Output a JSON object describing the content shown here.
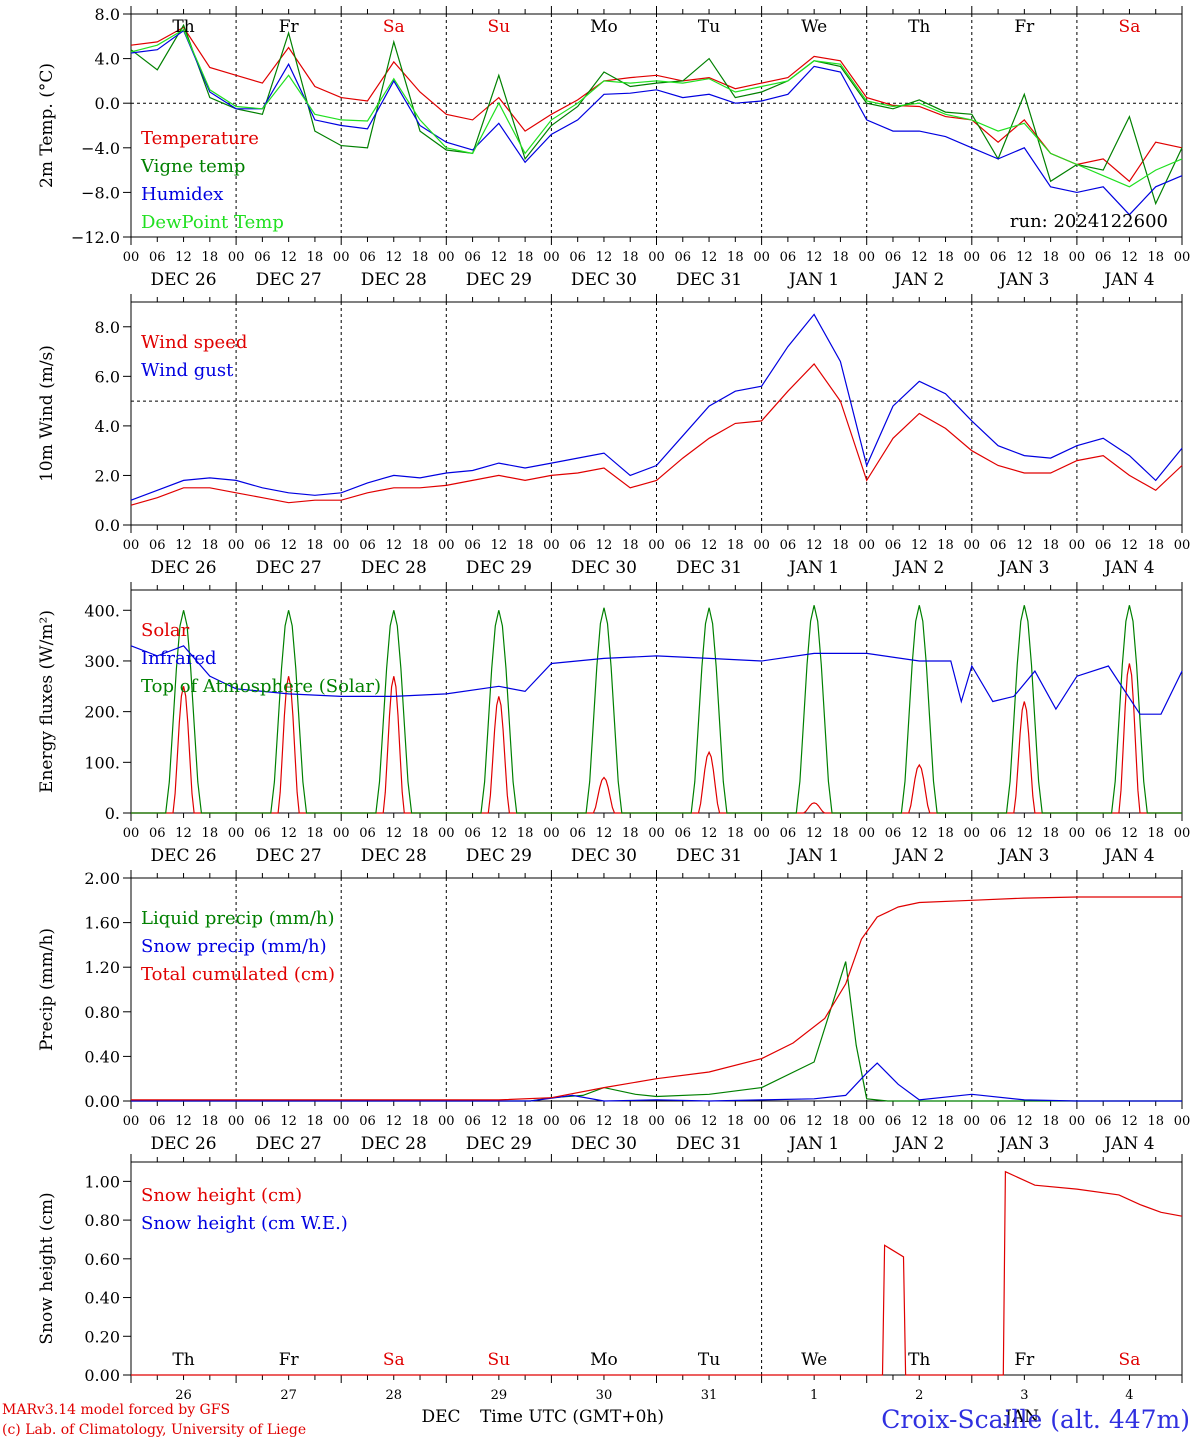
{
  "colors": {
    "red": "#e00000",
    "green": "#008000",
    "blue": "#0000e0",
    "lightgreen": "#20e020",
    "weekend": "#e00000",
    "station": "#3030e0"
  },
  "time_axis": {
    "hour_labels": [
      "00",
      "06",
      "12",
      "18"
    ],
    "final_label": "00",
    "date_labels": [
      "DEC 26",
      "DEC 27",
      "DEC 28",
      "DEC 29",
      "DEC 30",
      "DEC 31",
      "JAN  1",
      "JAN  2",
      "JAN  3",
      "JAN  4"
    ],
    "weekdays": [
      {
        "label": "Th",
        "weekend": false
      },
      {
        "label": "Fr",
        "weekend": false
      },
      {
        "label": "Sa",
        "weekend": true
      },
      {
        "label": "Su",
        "weekend": true
      },
      {
        "label": "Mo",
        "weekend": false
      },
      {
        "label": "Tu",
        "weekend": false
      },
      {
        "label": "We",
        "weekend": false
      },
      {
        "label": "Th",
        "weekend": false
      },
      {
        "label": "Fr",
        "weekend": false
      },
      {
        "label": "Sa",
        "weekend": true
      }
    ],
    "day_numbers": [
      "26",
      "27",
      "28",
      "29",
      "30",
      "31",
      "1",
      "2",
      "3",
      "4"
    ],
    "month_labels": {
      "dec": "DEC",
      "jan": "JAN"
    },
    "xlabel": "Time UTC (GMT+0h)"
  },
  "chart_data": [
    {
      "type": "line",
      "ylabel": "2m Temp. (°C)",
      "ylim": [
        -12,
        8
      ],
      "yticks": [
        "8.0",
        "4.0",
        "0.0",
        "−4.0",
        "−8.0",
        "−12.0"
      ],
      "ytick_values": [
        8,
        4,
        0,
        -4,
        -8,
        -12
      ],
      "ref_line": 0,
      "run_label": "run: 2024122600",
      "x_days": [
        0,
        0.25,
        0.5,
        0.75,
        1,
        1.25,
        1.5,
        1.75,
        2,
        2.25,
        2.5,
        2.75,
        3,
        3.25,
        3.5,
        3.75,
        4,
        4.25,
        4.5,
        4.75,
        5,
        5.25,
        5.5,
        5.75,
        6,
        6.25,
        6.5,
        6.75,
        7,
        7.25,
        7.5,
        7.75,
        8,
        8.25,
        8.5,
        8.75,
        9,
        9.25,
        9.5,
        9.75,
        10
      ],
      "series": [
        {
          "name": "Temperature",
          "color": "red",
          "values": [
            5.2,
            5.5,
            6.8,
            3.2,
            2.5,
            1.8,
            5.0,
            1.5,
            0.5,
            0.2,
            3.7,
            1.0,
            -1.0,
            -1.5,
            0.5,
            -2.5,
            -1.0,
            0.3,
            2.0,
            2.3,
            2.5,
            2.0,
            2.3,
            1.3,
            1.8,
            2.3,
            4.2,
            3.8,
            0.5,
            -0.2,
            -0.3,
            -1.2,
            -1.5,
            -3.5,
            -1.5,
            -4.5,
            -5.5,
            -5.0,
            -7.0,
            -3.5,
            -4.0
          ]
        },
        {
          "name": "Vigne temp",
          "color": "green",
          "values": [
            4.8,
            3.0,
            7.0,
            0.5,
            -0.5,
            -1.0,
            6.3,
            -2.5,
            -3.8,
            -4.0,
            5.5,
            -2.5,
            -4.2,
            -4.5,
            2.5,
            -5.0,
            -2.0,
            -0.3,
            2.8,
            1.5,
            1.8,
            2.0,
            4.0,
            0.5,
            1.0,
            2.0,
            3.8,
            3.3,
            0.0,
            -0.5,
            0.3,
            -0.8,
            -1.0,
            -5.0,
            0.8,
            -7.0,
            -5.5,
            -6.0,
            -1.2,
            -9.0,
            -4.0
          ]
        },
        {
          "name": "Humidex",
          "color": "blue",
          "values": [
            4.5,
            4.8,
            6.5,
            1.0,
            -0.5,
            -0.5,
            3.5,
            -1.5,
            -2.0,
            -2.3,
            2.0,
            -2.0,
            -3.5,
            -4.2,
            -1.8,
            -5.3,
            -2.8,
            -1.5,
            0.8,
            0.9,
            1.2,
            0.5,
            0.8,
            0.0,
            0.2,
            0.8,
            3.3,
            2.8,
            -1.5,
            -2.5,
            -2.5,
            -3.0,
            -4.0,
            -5.0,
            -4.0,
            -7.5,
            -8.0,
            -7.5,
            -10.0,
            -7.5,
            -6.5
          ]
        },
        {
          "name": "DewPoint Temp",
          "color": "lightgreen",
          "values": [
            4.6,
            5.2,
            6.6,
            1.2,
            -0.3,
            -0.5,
            2.5,
            -1.0,
            -1.5,
            -1.6,
            2.2,
            -1.5,
            -4.0,
            -4.5,
            0.0,
            -4.5,
            -1.5,
            0.0,
            2.0,
            1.8,
            2.0,
            1.8,
            2.2,
            1.0,
            1.5,
            2.0,
            3.8,
            3.5,
            0.2,
            -0.3,
            0.0,
            -1.0,
            -1.5,
            -2.5,
            -1.8,
            -4.5,
            -5.5,
            -6.5,
            -7.5,
            -6.0,
            -5.0
          ]
        }
      ]
    },
    {
      "type": "line",
      "ylabel": "10m Wind (m/s)",
      "ylim": [
        0,
        9
      ],
      "yticks": [
        "8.0",
        "6.0",
        "4.0",
        "2.0",
        "0.0"
      ],
      "ytick_values": [
        8,
        6,
        4,
        2,
        0
      ],
      "ref_line": 5,
      "x_days": [
        0,
        0.25,
        0.5,
        0.75,
        1,
        1.25,
        1.5,
        1.75,
        2,
        2.25,
        2.5,
        2.75,
        3,
        3.25,
        3.5,
        3.75,
        4,
        4.25,
        4.5,
        4.75,
        5,
        5.25,
        5.5,
        5.75,
        6,
        6.25,
        6.5,
        6.75,
        7,
        7.25,
        7.5,
        7.75,
        8,
        8.25,
        8.5,
        8.75,
        9,
        9.25,
        9.5,
        9.75,
        10
      ],
      "series": [
        {
          "name": "Wind speed",
          "color": "red",
          "values": [
            0.8,
            1.1,
            1.5,
            1.5,
            1.3,
            1.1,
            0.9,
            1.0,
            1.0,
            1.3,
            1.5,
            1.5,
            1.6,
            1.8,
            2.0,
            1.8,
            2.0,
            2.1,
            2.3,
            1.5,
            1.8,
            2.7,
            3.5,
            4.1,
            4.2,
            5.4,
            6.5,
            5.0,
            1.8,
            3.5,
            4.5,
            3.9,
            3.0,
            2.4,
            2.1,
            2.1,
            2.6,
            2.8,
            2.0,
            1.4,
            2.4
          ]
        },
        {
          "name": "Wind gust",
          "color": "blue",
          "values": [
            1.0,
            1.4,
            1.8,
            1.9,
            1.8,
            1.5,
            1.3,
            1.2,
            1.3,
            1.7,
            2.0,
            1.9,
            2.1,
            2.2,
            2.5,
            2.3,
            2.5,
            2.7,
            2.9,
            2.0,
            2.4,
            3.6,
            4.8,
            5.4,
            5.6,
            7.2,
            8.5,
            6.6,
            2.4,
            4.8,
            5.8,
            5.3,
            4.2,
            3.2,
            2.8,
            2.7,
            3.2,
            3.5,
            2.8,
            1.8,
            3.1
          ]
        }
      ]
    },
    {
      "type": "line",
      "ylabel": "Energy fluxes (W/m²)",
      "ylim": [
        0,
        440
      ],
      "yticks": [
        "400.",
        "300.",
        "200.",
        "100.",
        "0."
      ],
      "ytick_values": [
        400,
        300,
        200,
        100,
        0
      ],
      "diurnal_series": [
        {
          "name": "Solar",
          "color": "red",
          "peaks": [
            250,
            270,
            270,
            230,
            70,
            120,
            20,
            95,
            220,
            295
          ]
        },
        {
          "name": "Top of Atmosphere (Solar)",
          "color": "green",
          "peaks": [
            400,
            400,
            400,
            400,
            405,
            405,
            410,
            410,
            410,
            410
          ]
        }
      ],
      "series": [
        {
          "name": "Infrared",
          "color": "blue",
          "x_days": [
            0,
            0.25,
            0.5,
            0.75,
            1,
            1.5,
            2,
            2.5,
            3,
            3.5,
            3.75,
            4,
            4.5,
            5,
            5.5,
            6,
            6.5,
            7,
            7.5,
            7.8,
            7.9,
            8,
            8.2,
            8.4,
            8.6,
            8.8,
            9,
            9.3,
            9.6,
            9.8,
            10
          ],
          "values": [
            330,
            310,
            330,
            270,
            245,
            235,
            230,
            230,
            235,
            250,
            240,
            295,
            305,
            310,
            305,
            300,
            315,
            315,
            300,
            300,
            220,
            290,
            220,
            230,
            280,
            205,
            270,
            290,
            195,
            195,
            280
          ]
        }
      ]
    },
    {
      "type": "line",
      "ylabel": "Precip (mm/h)",
      "ylim": [
        0,
        2
      ],
      "yticks": [
        "2.00",
        "1.60",
        "1.20",
        "0.80",
        "0.40",
        "0.00"
      ],
      "ytick_values": [
        2,
        1.6,
        1.2,
        0.8,
        0.4,
        0
      ],
      "series": [
        {
          "name": "Liquid precip (mm/h)",
          "color": "green",
          "x_days": [
            0,
            3.8,
            4.0,
            4.3,
            4.5,
            4.8,
            5.0,
            5.5,
            6.0,
            6.5,
            6.8,
            6.9,
            7.0,
            7.2,
            10
          ],
          "values": [
            0,
            0,
            0.03,
            0.05,
            0.12,
            0.06,
            0.04,
            0.06,
            0.12,
            0.35,
            1.25,
            0.5,
            0.02,
            0,
            0
          ]
        },
        {
          "name": "Snow precip (mm/h)",
          "color": "blue",
          "x_days": [
            0,
            3.8,
            4.2,
            4.5,
            5.0,
            5.5,
            6.0,
            6.5,
            6.8,
            7.0,
            7.1,
            7.3,
            7.5,
            8.0,
            8.5,
            9.0,
            10
          ],
          "values": [
            0,
            0,
            0.05,
            0,
            0.01,
            0,
            0.01,
            0.02,
            0.05,
            0.25,
            0.34,
            0.15,
            0.01,
            0.06,
            0.01,
            0,
            0
          ]
        },
        {
          "name": "Total cumulated (cm)",
          "color": "red",
          "x_days": [
            0,
            3.5,
            4.0,
            4.5,
            5.0,
            5.5,
            6.0,
            6.3,
            6.6,
            6.8,
            6.95,
            7.1,
            7.3,
            7.5,
            8.0,
            8.5,
            9.0,
            10
          ],
          "values": [
            0.01,
            0.01,
            0.03,
            0.12,
            0.2,
            0.26,
            0.38,
            0.52,
            0.74,
            1.05,
            1.45,
            1.65,
            1.74,
            1.78,
            1.8,
            1.82,
            1.83,
            1.83
          ]
        }
      ]
    },
    {
      "type": "line",
      "ylabel": "Snow height (cm)",
      "ylim": [
        0,
        1.1
      ],
      "yticks": [
        "1.00",
        "0.80",
        "0.60",
        "0.40",
        "0.20",
        "0.00"
      ],
      "ytick_values": [
        1,
        0.8,
        0.6,
        0.4,
        0.2,
        0
      ],
      "series": [
        {
          "name": "Snow height (cm)",
          "color": "red",
          "x_days": [
            0,
            7.15,
            7.17,
            7.35,
            7.37,
            8.3,
            8.32,
            8.6,
            9.0,
            9.4,
            9.6,
            9.8,
            10
          ],
          "values": [
            0,
            0,
            0.67,
            0.61,
            0,
            0,
            1.05,
            0.98,
            0.96,
            0.93,
            0.88,
            0.84,
            0.82
          ]
        },
        {
          "name": "Snow height (cm W.E.)",
          "color": "blue",
          "x_days": [],
          "values": []
        }
      ]
    }
  ],
  "footer": {
    "credit_line1": "MARv3.14 model forced by GFS",
    "credit_line2": "(c) Lab. of Climatology, University of Liege",
    "station": "Croix-Scaille (alt. 447m)"
  }
}
